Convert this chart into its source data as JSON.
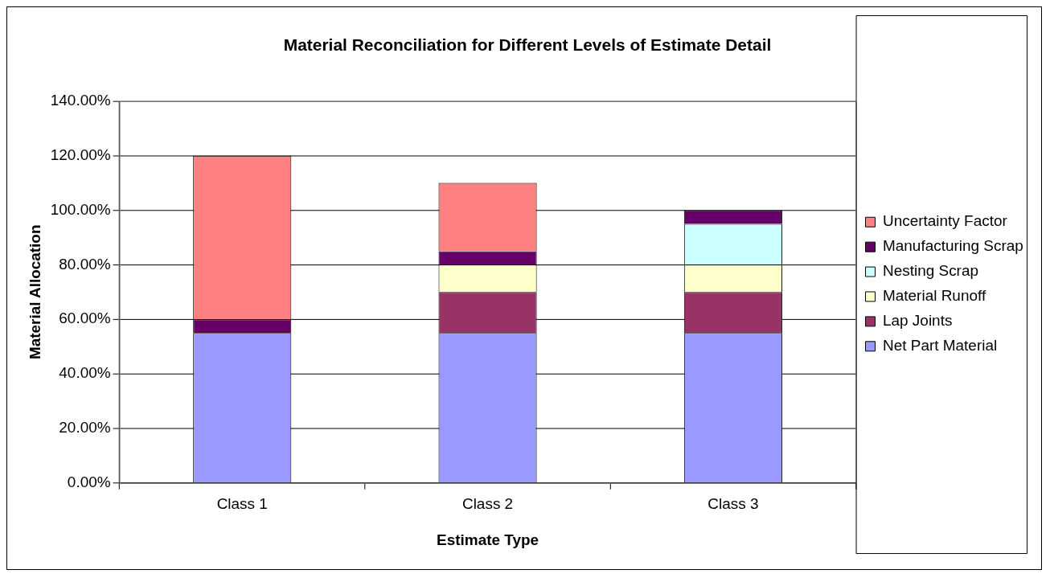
{
  "chart_data": {
    "type": "bar",
    "title": "Material Reconciliation for Different Levels of Estimate Detail",
    "xlabel": "Estimate Type",
    "ylabel": "Material Allocation",
    "categories": [
      "Class 1",
      "Class 2",
      "Class 3"
    ],
    "stacked": true,
    "series": [
      {
        "name": "Net Part Material",
        "color": "#9999ff",
        "values": [
          55,
          55,
          55
        ]
      },
      {
        "name": "Lap Joints",
        "color": "#993366",
        "values": [
          null,
          15,
          15
        ]
      },
      {
        "name": "Material Runoff",
        "color": "#ffffcc",
        "values": [
          null,
          10,
          10
        ]
      },
      {
        "name": "Nesting Scrap",
        "color": "#ccffff",
        "values": [
          null,
          null,
          15
        ]
      },
      {
        "name": "Manufacturing Scrap",
        "color": "#660066",
        "values": [
          5,
          5,
          5
        ]
      },
      {
        "name": "Uncertainty Factor",
        "color": "#ff8080",
        "values": [
          60,
          25,
          null
        ]
      }
    ],
    "ylim": [
      0,
      140
    ],
    "yticks": [
      {
        "value": 0,
        "label": "0.00%"
      },
      {
        "value": 20,
        "label": "20.00%"
      },
      {
        "value": 40,
        "label": "40.00%"
      },
      {
        "value": 60,
        "label": "60.00%"
      },
      {
        "value": 80,
        "label": "80.00%"
      },
      {
        "value": 100,
        "label": "100.00%"
      },
      {
        "value": 120,
        "label": "120.00%"
      },
      {
        "value": 140,
        "label": "140.00%"
      }
    ],
    "grid": "y",
    "legend": "right"
  }
}
